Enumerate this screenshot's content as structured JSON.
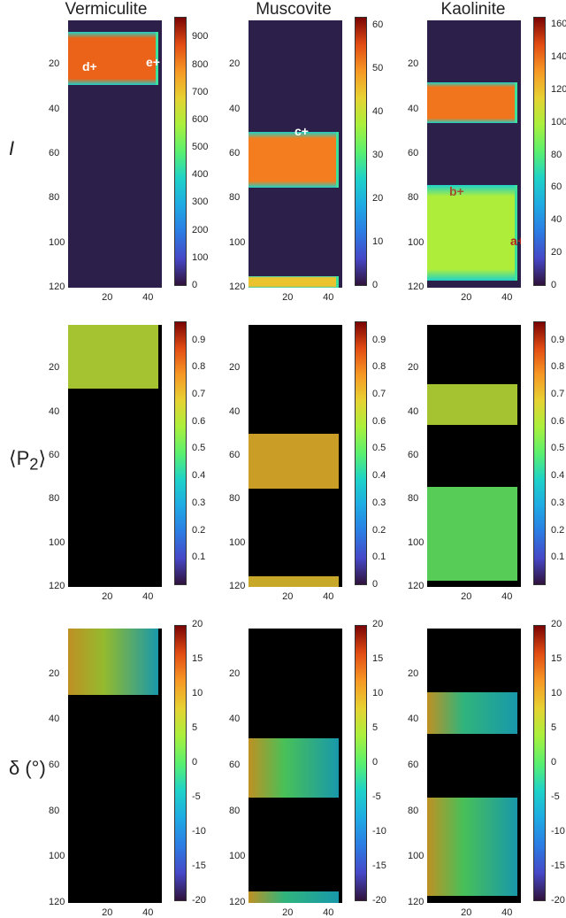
{
  "columns": [
    "Vermiculite",
    "Muscovite",
    "Kaolinite"
  ],
  "rows": [
    {
      "label": "I",
      "html_label": "<i>I</i>"
    },
    {
      "label": "⟨P2⟩",
      "html_label": "⟨P<sub>2</sub>⟩"
    },
    {
      "label": "δ (°)",
      "html_label": "δ (°)"
    }
  ],
  "chart_data": [
    {
      "type": "heatmap",
      "row": "I",
      "column": "Vermiculite",
      "ylim": [
        120,
        0
      ],
      "y_ticks": [
        20,
        40,
        60,
        80,
        100,
        120
      ],
      "x_ticks": [
        20,
        40
      ],
      "colorbar": {
        "min": 0,
        "max": 975,
        "ticks": [
          0,
          100,
          200,
          300,
          400,
          500,
          600,
          700,
          800,
          900
        ]
      },
      "background_value": 0,
      "bands": [
        {
          "y0": 5,
          "y1": 29,
          "value": 850
        }
      ],
      "markers": [
        "d",
        "e"
      ]
    },
    {
      "type": "heatmap",
      "row": "I",
      "column": "Muscovite",
      "ylim": [
        120,
        0
      ],
      "y_ticks": [
        20,
        40,
        60,
        80,
        100,
        120
      ],
      "x_ticks": [
        20,
        40
      ],
      "colorbar": {
        "min": 0,
        "max": 62,
        "ticks": [
          0,
          10,
          20,
          30,
          40,
          50,
          60
        ]
      },
      "background_value": 0,
      "bands": [
        {
          "y0": 50,
          "y1": 75,
          "value": 52
        },
        {
          "y0": 115,
          "y1": 120,
          "value": 45
        }
      ],
      "markers": [
        "c"
      ]
    },
    {
      "type": "heatmap",
      "row": "I",
      "column": "Kaolinite",
      "ylim": [
        120,
        0
      ],
      "y_ticks": [
        20,
        40,
        60,
        80,
        100,
        120
      ],
      "x_ticks": [
        20,
        40
      ],
      "colorbar": {
        "min": 0,
        "max": 165,
        "ticks": [
          0,
          20,
          40,
          60,
          80,
          100,
          120,
          140,
          160
        ]
      },
      "background_value": 5,
      "bands": [
        {
          "y0": 28,
          "y1": 46,
          "value": 140
        },
        {
          "y0": 74,
          "y1": 117,
          "value": 100
        }
      ],
      "markers": [
        "a",
        "b"
      ]
    },
    {
      "type": "heatmap",
      "row": "⟨P2⟩",
      "column": "Vermiculite",
      "ylim": [
        120,
        0
      ],
      "y_ticks": [
        20,
        40,
        60,
        80,
        100,
        120
      ],
      "x_ticks": [
        20,
        40
      ],
      "colorbar": {
        "min": 0,
        "max": 0.97,
        "ticks": [
          0.1,
          0.2,
          0.3,
          0.4,
          0.5,
          0.6,
          0.7,
          0.8,
          0.9
        ]
      },
      "bands": [
        {
          "y0": 0,
          "y1": 29,
          "value": 0.62
        }
      ]
    },
    {
      "type": "heatmap",
      "row": "⟨P2⟩",
      "column": "Muscovite",
      "ylim": [
        120,
        0
      ],
      "y_ticks": [
        20,
        40,
        60,
        80,
        100,
        120
      ],
      "x_ticks": [
        20,
        40
      ],
      "colorbar": {
        "min": 0,
        "max": 0.97,
        "ticks": [
          0,
          0.1,
          0.2,
          0.3,
          0.4,
          0.5,
          0.6,
          0.7,
          0.8,
          0.9
        ]
      },
      "bands": [
        {
          "y0": 50,
          "y1": 75,
          "value": 0.72
        },
        {
          "y0": 115,
          "y1": 120,
          "value": 0.7
        }
      ]
    },
    {
      "type": "heatmap",
      "row": "⟨P2⟩",
      "column": "Kaolinite",
      "ylim": [
        120,
        0
      ],
      "y_ticks": [
        20,
        40,
        60,
        80,
        100,
        120
      ],
      "x_ticks": [
        20,
        40
      ],
      "colorbar": {
        "min": 0,
        "max": 0.97,
        "ticks": [
          0.1,
          0.2,
          0.3,
          0.4,
          0.5,
          0.6,
          0.7,
          0.8,
          0.9
        ]
      },
      "bands": [
        {
          "y0": 27,
          "y1": 46,
          "value": 0.62
        },
        {
          "y0": 74,
          "y1": 117,
          "value": 0.5
        }
      ]
    },
    {
      "type": "heatmap",
      "row": "δ (°)",
      "column": "Vermiculite",
      "ylim": [
        120,
        0
      ],
      "y_ticks": [
        20,
        40,
        60,
        80,
        100,
        120
      ],
      "x_ticks": [
        20,
        40
      ],
      "colorbar": {
        "min": -20,
        "max": 20,
        "ticks": [
          20,
          15,
          10,
          5,
          0,
          -5,
          -10,
          -15,
          -20
        ]
      },
      "bands": [
        {
          "y0": 0,
          "y1": 29,
          "value": 5
        }
      ]
    },
    {
      "type": "heatmap",
      "row": "δ (°)",
      "column": "Muscovite",
      "ylim": [
        120,
        0
      ],
      "y_ticks": [
        20,
        40,
        60,
        80,
        100,
        120
      ],
      "x_ticks": [
        20,
        40
      ],
      "colorbar": {
        "min": -20,
        "max": 20,
        "ticks": [
          20,
          15,
          10,
          5,
          0,
          -5,
          -10,
          -15,
          -20
        ]
      },
      "bands": [
        {
          "y0": 48,
          "y1": 74,
          "value": 0
        },
        {
          "y0": 115,
          "y1": 120,
          "value": -2
        }
      ]
    },
    {
      "type": "heatmap",
      "row": "δ (°)",
      "column": "Kaolinite",
      "ylim": [
        120,
        0
      ],
      "y_ticks": [
        20,
        40,
        60,
        80,
        100,
        120
      ],
      "x_ticks": [
        20,
        40
      ],
      "colorbar": {
        "min": -20,
        "max": 20,
        "ticks": [
          20,
          15,
          10,
          5,
          0,
          -5,
          -10,
          -15,
          -20
        ]
      },
      "bands": [
        {
          "y0": 28,
          "y1": 46,
          "value": -2
        },
        {
          "y0": 74,
          "y1": 117,
          "value": 0
        }
      ]
    }
  ]
}
